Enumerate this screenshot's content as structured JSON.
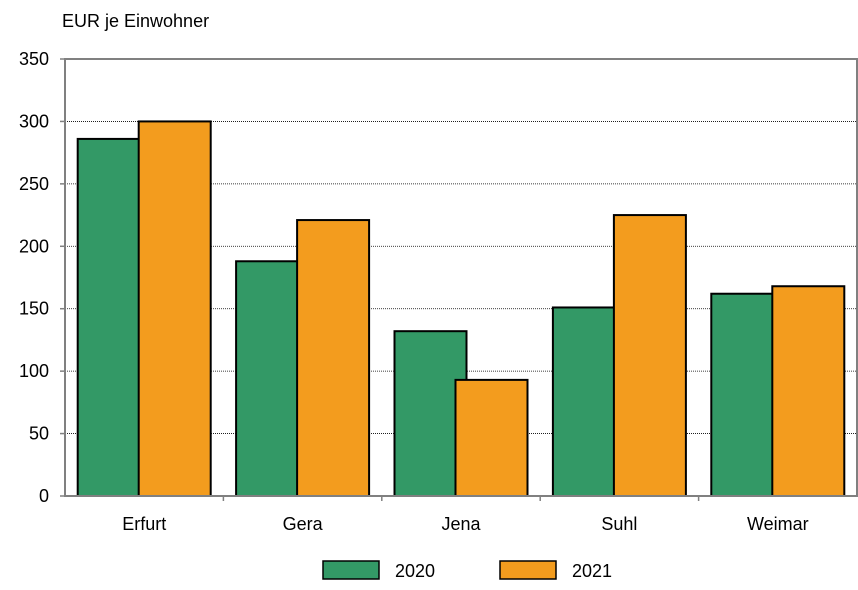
{
  "chart_data": {
    "type": "bar",
    "ylabel": "EUR je Einwohner",
    "categories": [
      "Erfurt",
      "Gera",
      "Jena",
      "Suhl",
      "Weimar"
    ],
    "series": [
      {
        "name": "2020",
        "color": "#339966",
        "values": [
          286,
          188,
          132,
          151,
          162
        ]
      },
      {
        "name": "2021",
        "color": "#f39c1e",
        "values": [
          300,
          221,
          93,
          225,
          168
        ]
      }
    ],
    "ylim": [
      0,
      350
    ],
    "yticks": [
      0,
      50,
      100,
      150,
      200,
      250,
      300,
      350
    ],
    "grid": true,
    "legend": "bottom-center"
  }
}
